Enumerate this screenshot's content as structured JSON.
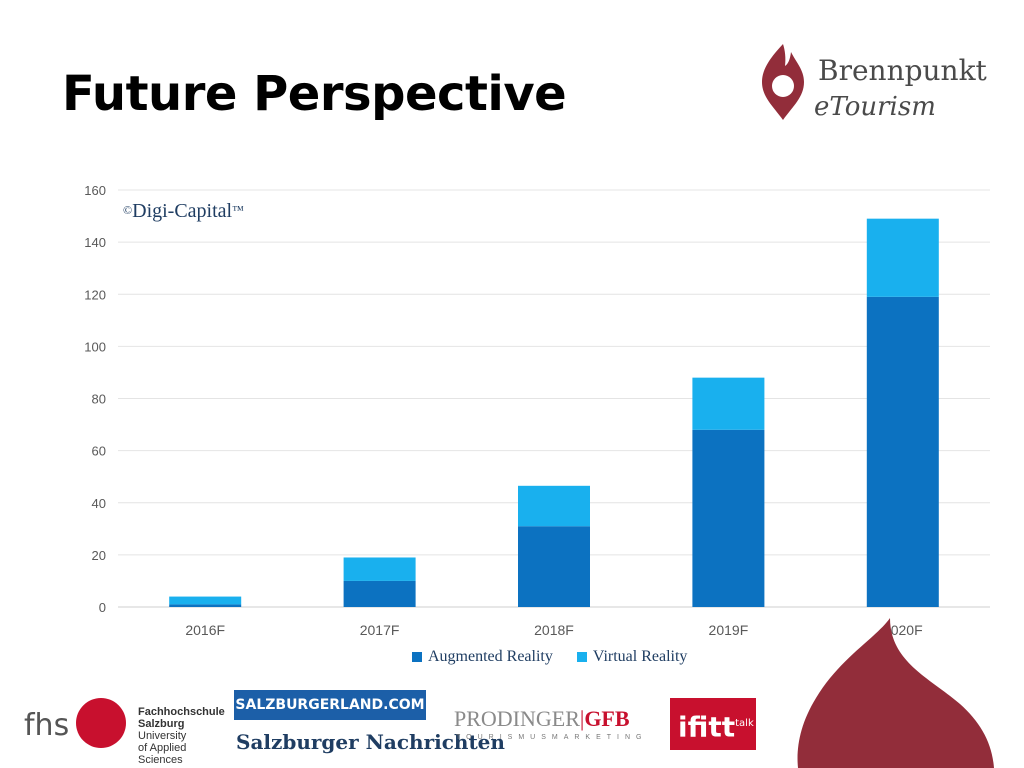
{
  "slide": {
    "title": "Future Perspective"
  },
  "logo": {
    "line1": "Brennpunkt",
    "line2": "eTourism"
  },
  "credit": {
    "symbol": "©",
    "text": "Digi-Capital",
    "tm": "™"
  },
  "colors": {
    "augmented": "#0c72c1",
    "virtual": "#19b0ee",
    "brand_red": "#922d3a",
    "grid": "#e4e4e4"
  },
  "chart_data": {
    "type": "bar",
    "stacked": true,
    "categories": [
      "2016F",
      "2017F",
      "2018F",
      "2019F",
      "2020F"
    ],
    "series": [
      {
        "name": "Augmented Reality",
        "values": [
          1,
          10,
          31,
          68,
          119
        ]
      },
      {
        "name": "Virtual Reality",
        "values": [
          3,
          9,
          15.5,
          20,
          30
        ]
      }
    ],
    "ylim": [
      0,
      160
    ],
    "yticks": [
      0,
      20,
      40,
      60,
      80,
      100,
      120,
      140,
      160
    ],
    "grid": true,
    "legend": "bottom"
  },
  "sponsors": {
    "fhs_mark": "fhs",
    "fhs_line1": "Fachhochschule",
    "fhs_line2_bold": "Salzburg",
    "fhs_line2_rest": " University",
    "fhs_line3": "of Applied Sciences",
    "salzburgerland": "SALZBURGERLAND.COM",
    "sn": "Salzburger Nachrichten",
    "prodinger": "PRODINGER",
    "gfb": "GFB",
    "prodinger_sub": "TOURISMUSMARKETING",
    "ifitt": "ifitt",
    "ifitt_sup": "talk"
  }
}
